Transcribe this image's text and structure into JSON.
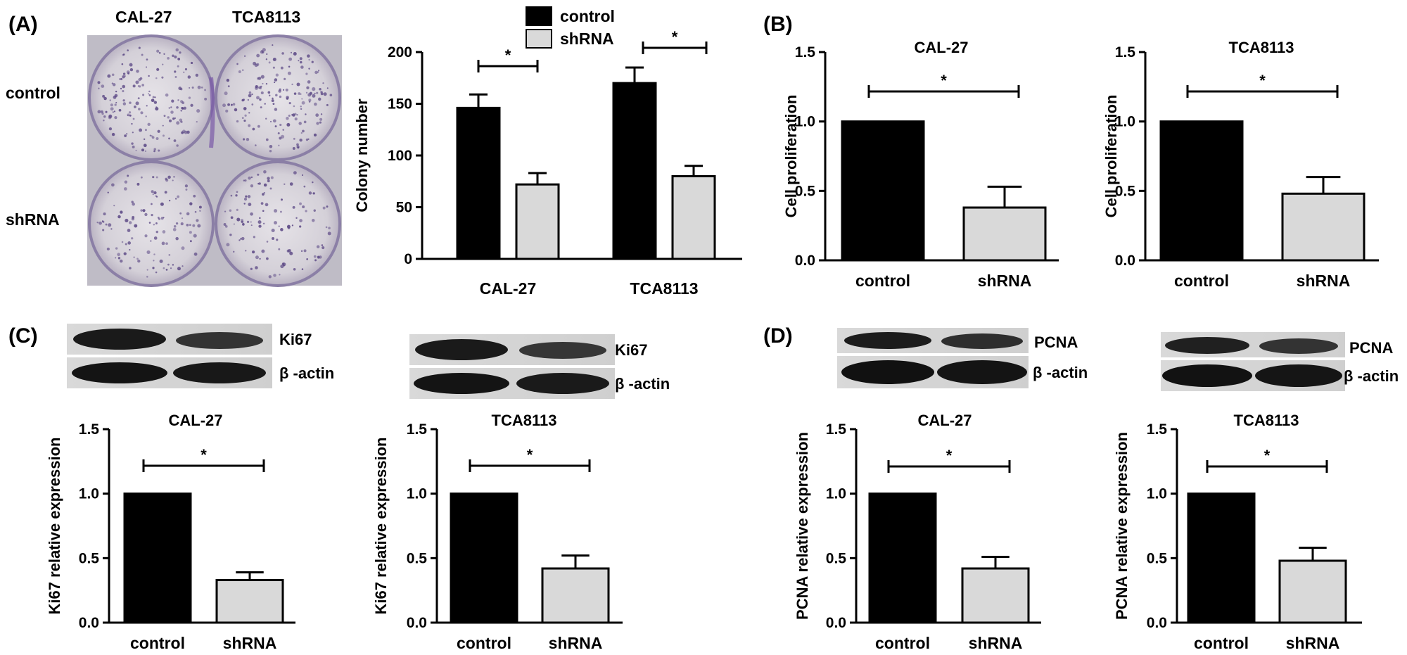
{
  "panels": {
    "A": "(A)",
    "B": "(B)",
    "C": "(C)",
    "D": "(D)"
  },
  "colors": {
    "control": "#000000",
    "shrna": "#d9d9d9"
  },
  "plate": {
    "col_labels": [
      "CAL-27",
      "TCA8113"
    ],
    "row_labels": [
      "control",
      "shRNA"
    ]
  },
  "blots": [
    {
      "target": "Ki67",
      "loading": "β -actin"
    },
    {
      "target": "Ki67",
      "loading": "β -actin"
    },
    {
      "target": "PCNA",
      "loading": "β -actin"
    },
    {
      "target": "PCNA",
      "loading": "β -actin"
    }
  ],
  "chart_data": [
    {
      "type": "bar",
      "title": "",
      "ylabel": "Colony number",
      "categories": [
        "CAL-27",
        "TCA8113"
      ],
      "series": [
        {
          "name": "control",
          "values": [
            146,
            170
          ],
          "errors": [
            13,
            15
          ]
        },
        {
          "name": "shRNA",
          "values": [
            72,
            80
          ],
          "errors": [
            11,
            10
          ]
        }
      ],
      "ylim": [
        0,
        200
      ],
      "yticks": [
        "0",
        "50",
        "100",
        "150",
        "200"
      ],
      "legend": [
        "control",
        "shRNA"
      ],
      "significance": [
        "*",
        "*"
      ]
    },
    {
      "type": "bar",
      "title": "CAL-27",
      "ylabel": "Cell proliferation",
      "categories": [
        "control",
        "shRNA"
      ],
      "values": [
        1.0,
        0.38
      ],
      "errors": [
        0,
        0.15
      ],
      "ylim": [
        0,
        1.5
      ],
      "yticks": [
        "0.0",
        "0.5",
        "1.0",
        "1.5"
      ],
      "significance": "*"
    },
    {
      "type": "bar",
      "title": "TCA8113",
      "ylabel": "Cell proliferation",
      "categories": [
        "control",
        "shRNA"
      ],
      "values": [
        1.0,
        0.48
      ],
      "errors": [
        0,
        0.12
      ],
      "ylim": [
        0,
        1.5
      ],
      "yticks": [
        "0.0",
        "0.5",
        "1.0",
        "1.5"
      ],
      "significance": "*"
    },
    {
      "type": "bar",
      "title": "CAL-27",
      "ylabel": "Ki67 relative expression",
      "categories": [
        "control",
        "shRNA"
      ],
      "values": [
        1.0,
        0.33
      ],
      "errors": [
        0,
        0.06
      ],
      "ylim": [
        0,
        1.5
      ],
      "yticks": [
        "0.0",
        "0.5",
        "1.0",
        "1.5"
      ],
      "significance": "*"
    },
    {
      "type": "bar",
      "title": "TCA8113",
      "ylabel": "Ki67 relative expression",
      "categories": [
        "control",
        "shRNA"
      ],
      "values": [
        1.0,
        0.42
      ],
      "errors": [
        0,
        0.1
      ],
      "ylim": [
        0,
        1.5
      ],
      "yticks": [
        "0.0",
        "0.5",
        "1.0",
        "1.5"
      ],
      "significance": "*"
    },
    {
      "type": "bar",
      "title": "CAL-27",
      "ylabel": "PCNA relative expression",
      "categories": [
        "control",
        "shRNA"
      ],
      "values": [
        1.0,
        0.42
      ],
      "errors": [
        0,
        0.09
      ],
      "ylim": [
        0,
        1.5
      ],
      "yticks": [
        "0.0",
        "0.5",
        "1.0",
        "1.5"
      ],
      "significance": "*"
    },
    {
      "type": "bar",
      "title": "TCA8113",
      "ylabel": "PCNA relative expression",
      "categories": [
        "control",
        "shRNA"
      ],
      "values": [
        1.0,
        0.48
      ],
      "errors": [
        0,
        0.1
      ],
      "ylim": [
        0,
        1.5
      ],
      "yticks": [
        "0.0",
        "0.5",
        "1.0",
        "1.5"
      ],
      "significance": "*"
    }
  ]
}
